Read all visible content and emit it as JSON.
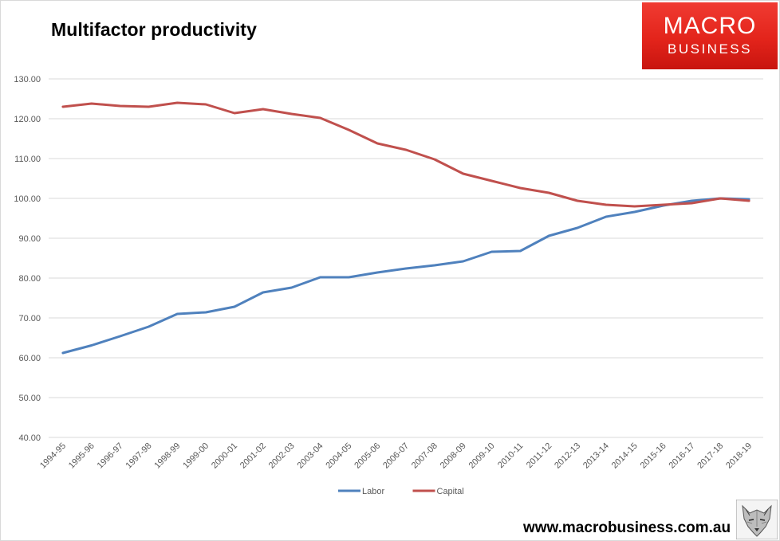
{
  "page": {
    "title": "Multifactor productivity",
    "logo": {
      "line1": "MACRO",
      "line2": "BUSINESS"
    },
    "website": "www.macrobusiness.com.au",
    "mascot_icon": "wolf-head-icon"
  },
  "chart_data": {
    "type": "line",
    "title": "Multifactor productivity",
    "xlabel": "",
    "ylabel": "",
    "ylim": [
      40,
      130
    ],
    "y_ticks": [
      "40.00",
      "50.00",
      "60.00",
      "70.00",
      "80.00",
      "90.00",
      "100.00",
      "110.00",
      "120.00",
      "130.00"
    ],
    "grid": true,
    "legend_position": "bottom",
    "categories": [
      "1994-95",
      "1995-96",
      "1996-97",
      "1997-98",
      "1998-99",
      "1999-00",
      "2000-01",
      "2001-02",
      "2002-03",
      "2003-04",
      "2004-05",
      "2005-06",
      "2006-07",
      "2007-08",
      "2008-09",
      "2009-10",
      "2010-11",
      "2011-12",
      "2012-13",
      "2013-14",
      "2014-15",
      "2015-16",
      "2016-17",
      "2017-18",
      "2018-19"
    ],
    "series": [
      {
        "name": "Labor",
        "color": "#4f81bd",
        "values": [
          61.2,
          63.1,
          65.4,
          67.8,
          71.0,
          71.4,
          72.8,
          76.4,
          77.6,
          80.2,
          80.2,
          81.4,
          82.4,
          83.2,
          84.2,
          86.6,
          86.8,
          90.6,
          92.6,
          95.4,
          96.6,
          98.2,
          99.4,
          100.0,
          99.8
        ]
      },
      {
        "name": "Capital",
        "color": "#c0504d",
        "values": [
          123.0,
          123.8,
          123.2,
          123.0,
          124.0,
          123.6,
          121.4,
          122.4,
          121.2,
          120.2,
          117.2,
          113.8,
          112.2,
          109.8,
          106.2,
          104.4,
          102.6,
          101.4,
          99.4,
          98.4,
          98.0,
          98.4,
          98.8,
          100.0,
          99.4
        ]
      }
    ]
  }
}
